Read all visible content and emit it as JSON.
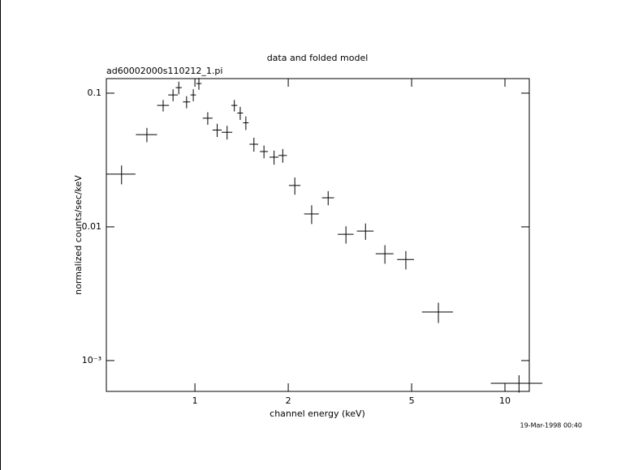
{
  "chart_data": {
    "type": "scatter",
    "title": "data and folded model",
    "subtitle": "ad60002000s110212_1.pi",
    "x_label": "channel energy (keV)",
    "y_label": "normalized counts/sec/keV",
    "timestamp": "19-Mar-1998 00:40",
    "x_log": true,
    "y_log": true,
    "color": "#000000",
    "xlim": [
      0.518,
      11.98
    ],
    "ylim": [
      0.000588,
      0.1285
    ],
    "xticks": [
      1,
      2,
      5,
      10
    ],
    "yticks": [
      0.1,
      0.01,
      {
        "value": 0.001,
        "label": "10⁻³"
      }
    ],
    "x": [
      0.58,
      0.7,
      0.79,
      0.85,
      0.887,
      0.94,
      0.988,
      1.03,
      1.1,
      1.18,
      1.27,
      1.34,
      1.4,
      1.46,
      1.55,
      1.67,
      1.8,
      1.92,
      2.1,
      2.38,
      2.69,
      3.07,
      3.55,
      4.1,
      4.79,
      6.1,
      11.1
    ],
    "xerr": [
      0.063,
      0.055,
      0.035,
      0.03,
      0.02,
      0.025,
      0.02,
      0.02,
      0.04,
      0.04,
      0.05,
      0.03,
      0.03,
      0.03,
      0.05,
      0.05,
      0.06,
      0.06,
      0.09,
      0.13,
      0.12,
      0.18,
      0.22,
      0.27,
      0.3,
      0.7,
      2.1
    ],
    "values": [
      0.0248,
      0.049,
      0.081,
      0.097,
      0.11,
      0.086,
      0.097,
      0.118,
      0.065,
      0.053,
      0.051,
      0.081,
      0.071,
      0.06,
      0.0415,
      0.0366,
      0.0332,
      0.0342,
      0.0204,
      0.0125,
      0.0165,
      0.0088,
      0.0093,
      0.0063,
      0.0057,
      0.00231,
      0.000676
    ],
    "yerr": [
      0.004,
      0.006,
      0.008,
      0.01,
      0.012,
      0.009,
      0.01,
      0.012,
      0.007,
      0.006,
      0.006,
      0.008,
      0.008,
      0.007,
      0.005,
      0.004,
      0.004,
      0.004,
      0.003,
      0.002,
      0.002,
      0.0013,
      0.0013,
      0.001,
      0.0009,
      0.0004,
      0.0001
    ]
  }
}
